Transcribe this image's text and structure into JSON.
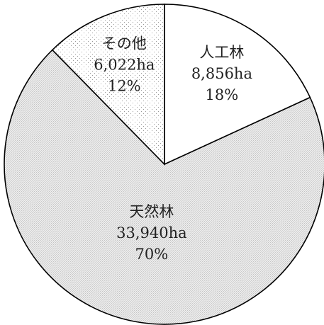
{
  "chart_data": {
    "type": "pie",
    "slices": [
      {
        "name": "人工林",
        "area": "8,856ha",
        "percent_label": "18%",
        "value": 8856,
        "fill": "#ffffff",
        "pattern": "none"
      },
      {
        "name": "天然林",
        "area": "33,940ha",
        "percent_label": "70%",
        "value": 33940,
        "fill": "#e3e3e3",
        "pattern": "fine-grey"
      },
      {
        "name": "その他",
        "area": "6,022ha",
        "percent_label": "12%",
        "value": 6022,
        "fill": "#ffffff",
        "pattern": "dots"
      }
    ],
    "start_direction": "top",
    "direction": "clockwise",
    "outline_color": "#000000"
  }
}
